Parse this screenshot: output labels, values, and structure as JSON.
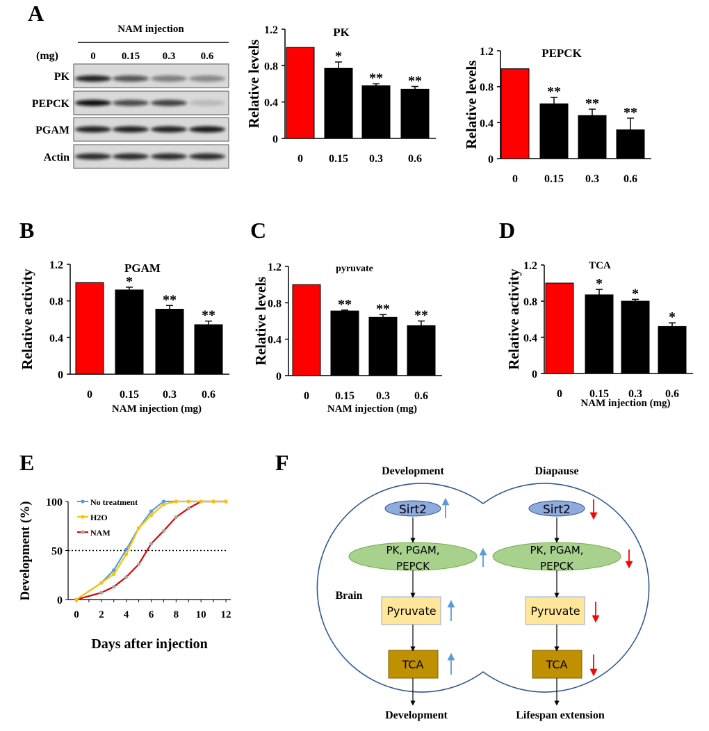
{
  "panel_letters": [
    "A",
    "B",
    "C",
    "D",
    "E",
    "F"
  ],
  "blot": {
    "header": "NAM injection",
    "unit_label": "(mg)",
    "lanes": [
      "0",
      "0.15",
      "0.3",
      "0.6"
    ],
    "rows": [
      {
        "label": "PK",
        "band_intensity": [
          0.9,
          0.65,
          0.45,
          0.4
        ]
      },
      {
        "label": "PEPCK",
        "band_intensity": [
          1.0,
          0.7,
          0.75,
          0.15
        ]
      },
      {
        "label": "PGAM",
        "band_intensity": [
          0.9,
          0.9,
          0.9,
          0.95
        ]
      },
      {
        "label": "Actin",
        "band_intensity": [
          0.85,
          0.85,
          0.85,
          0.85
        ]
      }
    ]
  },
  "colors": {
    "control": "#ff0000",
    "treated": "#000000",
    "no_treatment": "#5b9bd5",
    "h2o": "#ffc000",
    "nam": "#e00000",
    "nam_marker": "#a6a6a6"
  },
  "chart_data": [
    {
      "type": "bar",
      "title": "PK",
      "ylabel": "Relative levels",
      "xlabel": "",
      "categories": [
        "0",
        "0.15",
        "0.3",
        "0.6"
      ],
      "values": [
        1.0,
        0.77,
        0.58,
        0.54
      ],
      "errors": [
        0,
        0.07,
        0.02,
        0.03
      ],
      "significance": [
        "",
        "*",
        "**",
        "**"
      ],
      "ylim": [
        0,
        1.2
      ],
      "yticks": [
        "0",
        "0.4",
        "0.8",
        "1.2"
      ]
    },
    {
      "type": "bar",
      "title": "PEPCK",
      "ylabel": "Relative levels",
      "xlabel": "",
      "categories": [
        "0",
        "0.15",
        "0.3",
        "0.6"
      ],
      "values": [
        1.0,
        0.61,
        0.48,
        0.32
      ],
      "errors": [
        0,
        0.07,
        0.07,
        0.13
      ],
      "significance": [
        "",
        "**",
        "**",
        "**"
      ],
      "ylim": [
        0,
        1.2
      ],
      "yticks": [
        "0",
        "0.4",
        "0.8",
        "1.2"
      ]
    },
    {
      "type": "bar",
      "title": "PGAM",
      "ylabel": "Relative activity",
      "xlabel": "NAM injection (mg)",
      "categories": [
        "0",
        "0.15",
        "0.3",
        "0.6"
      ],
      "values": [
        1.0,
        0.92,
        0.71,
        0.54
      ],
      "errors": [
        0,
        0.03,
        0.04,
        0.04
      ],
      "significance": [
        "",
        "*",
        "**",
        "**"
      ],
      "ylim": [
        0,
        1.2
      ],
      "yticks": [
        "0",
        "0.4",
        "0.8",
        "1.2"
      ]
    },
    {
      "type": "bar",
      "title": "pyruvate",
      "ylabel": "Relative levels",
      "xlabel": "NAM injection (mg)",
      "categories": [
        "0",
        "0.15",
        "0.3",
        "0.6"
      ],
      "values": [
        1.0,
        0.71,
        0.64,
        0.55
      ],
      "errors": [
        0,
        0.01,
        0.03,
        0.05
      ],
      "significance": [
        "",
        "**",
        "**",
        "**"
      ],
      "ylim": [
        0,
        1.2
      ],
      "yticks": [
        "0",
        "0.4",
        "0.8",
        "1.2"
      ]
    },
    {
      "type": "bar",
      "title": "TCA",
      "ylabel": "Relative activity",
      "xlabel": "NAM injection (mg)",
      "categories": [
        "0",
        "0.15",
        "0.3",
        "0.6"
      ],
      "values": [
        1.0,
        0.87,
        0.8,
        0.52
      ],
      "errors": [
        0,
        0.06,
        0.02,
        0.04
      ],
      "significance": [
        "",
        "*",
        "*",
        "*"
      ],
      "ylim": [
        0,
        1.2
      ],
      "yticks": [
        "0",
        "0.4",
        "0.8",
        "1.2"
      ]
    },
    {
      "type": "line",
      "xlabel": "Days after injection",
      "ylabel": "Development (%)",
      "xlim": [
        0,
        12
      ],
      "ylim": [
        0,
        100
      ],
      "xticks": [
        "0",
        "2",
        "4",
        "6",
        "8",
        "10",
        "12"
      ],
      "yticks": [
        "0",
        "50",
        "100"
      ],
      "reference_line": 50,
      "legend": "top-left",
      "x": [
        0,
        2,
        3,
        4,
        5,
        6,
        7,
        8,
        9,
        10,
        11,
        12
      ],
      "series": [
        {
          "name": "No treatment",
          "values": [
            0,
            17,
            30,
            51,
            73,
            90,
            100,
            100,
            100,
            100,
            100,
            100
          ]
        },
        {
          "name": "H2O",
          "values": [
            0,
            17,
            26,
            46,
            73,
            86,
            97,
            100,
            100,
            100,
            100,
            100
          ]
        },
        {
          "name": "NAM",
          "values": [
            0,
            7,
            13,
            23,
            36,
            57,
            70,
            84,
            93,
            100,
            100,
            100
          ]
        }
      ]
    }
  ],
  "diagram": {
    "left": {
      "title": "Development",
      "outcome": "Development",
      "direction": "up"
    },
    "right": {
      "title": "Diapause",
      "outcome": "Lifespan extension",
      "direction": "down"
    },
    "region_label": "Brain",
    "nodes": {
      "sirt2": "Sirt2",
      "enzymes_line1": "PK, PGAM,",
      "enzymes_line2": "PEPCK",
      "pyruvate": "Pyruvate",
      "tca": "TCA"
    },
    "node_colors": {
      "sirt2": "#8faadc",
      "enzymes": "#a9d18e",
      "pyruvate": "#ffe699",
      "tca": "#bf9000",
      "outline": "#2f5597",
      "up_arrow": "#5b9bd5",
      "down_arrow": "#ff0000"
    }
  }
}
